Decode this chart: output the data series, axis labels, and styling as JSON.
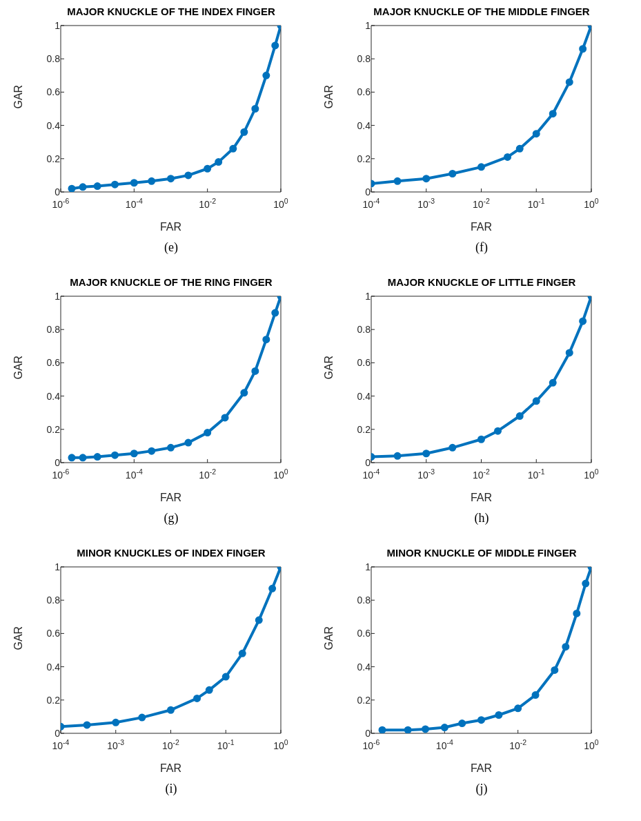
{
  "chart_data": [
    {
      "type": "line",
      "title": "MAJOR KNUCKLE OF THE INDEX FINGER",
      "xlabel": "FAR",
      "ylabel": "GAR",
      "annotations": [
        "(e)"
      ],
      "log": "x",
      "grid": false,
      "marker": "circle",
      "line_style": "solid",
      "color": "#0072bd",
      "xlim": [
        1e-06,
        1
      ],
      "xticks": [
        {
          "value": 1e-06,
          "label": "10$^{-6}$"
        },
        {
          "value": 0.0001,
          "label": "10$^{-4}$"
        },
        {
          "value": 0.01,
          "label": "10$^{-2}$"
        },
        {
          "value": 1,
          "label": "10$^{0}$"
        }
      ],
      "ylim": [
        0,
        1
      ],
      "yticks": [
        0,
        0.2,
        0.4,
        0.6,
        0.8,
        1
      ],
      "x": [
        2e-06,
        4e-06,
        1e-05,
        3e-05,
        0.0001,
        0.0003,
        0.001,
        0.003,
        0.01,
        0.02,
        0.05,
        0.1,
        0.2,
        0.4,
        0.7,
        1
      ],
      "values": [
        0.02,
        0.03,
        0.035,
        0.045,
        0.055,
        0.065,
        0.08,
        0.1,
        0.14,
        0.18,
        0.26,
        0.36,
        0.5,
        0.7,
        0.88,
        1
      ]
    },
    {
      "type": "line",
      "title": "MAJOR KNUCKLE OF THE MIDDLE FINGER",
      "xlabel": "FAR",
      "ylabel": "GAR",
      "annotations": [
        "(f)"
      ],
      "log": "x",
      "grid": false,
      "marker": "circle",
      "line_style": "solid",
      "color": "#0072bd",
      "xlim": [
        0.0001,
        1
      ],
      "xticks": [
        {
          "value": 0.0001,
          "label": "10$^{-4}$"
        },
        {
          "value": 0.001,
          "label": "10$^{-3}$"
        },
        {
          "value": 0.01,
          "label": "10$^{-2}$"
        },
        {
          "value": 0.1,
          "label": "10$^{-1}$"
        },
        {
          "value": 1,
          "label": "10$^{0}$"
        }
      ],
      "ylim": [
        0,
        1
      ],
      "yticks": [
        0,
        0.2,
        0.4,
        0.6,
        0.8,
        1
      ],
      "x": [
        0.0001,
        0.0003,
        0.001,
        0.003,
        0.01,
        0.03,
        0.05,
        0.1,
        0.2,
        0.4,
        0.7,
        1
      ],
      "values": [
        0.05,
        0.065,
        0.08,
        0.11,
        0.15,
        0.21,
        0.26,
        0.35,
        0.47,
        0.66,
        0.86,
        1
      ]
    },
    {
      "type": "line",
      "title": "MAJOR KNUCKLE OF THE RING FINGER",
      "xlabel": "FAR",
      "ylabel": "GAR",
      "annotations": [
        "(g)"
      ],
      "log": "x",
      "grid": false,
      "marker": "circle",
      "line_style": "solid",
      "color": "#0072bd",
      "xlim": [
        1e-06,
        1
      ],
      "xticks": [
        {
          "value": 1e-06,
          "label": "10$^{-6}$"
        },
        {
          "value": 0.0001,
          "label": "10$^{-4}$"
        },
        {
          "value": 0.01,
          "label": "10$^{-2}$"
        },
        {
          "value": 1,
          "label": "10$^{0}$"
        }
      ],
      "ylim": [
        0,
        1
      ],
      "yticks": [
        0,
        0.2,
        0.4,
        0.6,
        0.8,
        1
      ],
      "x": [
        2e-06,
        4e-06,
        1e-05,
        3e-05,
        0.0001,
        0.0003,
        0.001,
        0.003,
        0.01,
        0.03,
        0.1,
        0.2,
        0.4,
        0.7,
        1
      ],
      "values": [
        0.03,
        0.03,
        0.035,
        0.045,
        0.055,
        0.07,
        0.09,
        0.12,
        0.18,
        0.27,
        0.42,
        0.55,
        0.74,
        0.9,
        1
      ]
    },
    {
      "type": "line",
      "title": "MAJOR KNUCKLE OF LITTLE FINGER",
      "xlabel": "FAR",
      "ylabel": "GAR",
      "annotations": [
        "(h)"
      ],
      "log": "x",
      "grid": false,
      "marker": "circle",
      "line_style": "solid",
      "color": "#0072bd",
      "xlim": [
        0.0001,
        1
      ],
      "xticks": [
        {
          "value": 0.0001,
          "label": "10$^{-4}$"
        },
        {
          "value": 0.001,
          "label": "10$^{-3}$"
        },
        {
          "value": 0.01,
          "label": "10$^{-2}$"
        },
        {
          "value": 0.1,
          "label": "10$^{-1}$"
        },
        {
          "value": 1,
          "label": "10$^{0}$"
        }
      ],
      "ylim": [
        0,
        1
      ],
      "yticks": [
        0,
        0.2,
        0.4,
        0.6,
        0.8,
        1
      ],
      "x": [
        0.0001,
        0.0003,
        0.001,
        0.003,
        0.01,
        0.02,
        0.05,
        0.1,
        0.2,
        0.4,
        0.7,
        1
      ],
      "values": [
        0.035,
        0.04,
        0.055,
        0.09,
        0.14,
        0.19,
        0.28,
        0.37,
        0.48,
        0.66,
        0.85,
        1
      ]
    },
    {
      "type": "line",
      "title": "MINOR KNUCKLES OF INDEX FINGER",
      "xlabel": "FAR",
      "ylabel": "GAR",
      "annotations": [
        "(i)"
      ],
      "log": "x",
      "grid": false,
      "marker": "circle",
      "line_style": "solid",
      "color": "#0072bd",
      "xlim": [
        0.0001,
        1
      ],
      "xticks": [
        {
          "value": 0.0001,
          "label": "10$^{-4}$"
        },
        {
          "value": 0.001,
          "label": "10$^{-3}$"
        },
        {
          "value": 0.01,
          "label": "10$^{-2}$"
        },
        {
          "value": 0.1,
          "label": "10$^{-1}$"
        },
        {
          "value": 1,
          "label": "10$^{0}$"
        }
      ],
      "ylim": [
        0,
        1
      ],
      "yticks": [
        0,
        0.2,
        0.4,
        0.6,
        0.8,
        1
      ],
      "x": [
        0.0001,
        0.0003,
        0.001,
        0.003,
        0.01,
        0.03,
        0.05,
        0.1,
        0.2,
        0.4,
        0.7,
        1
      ],
      "values": [
        0.04,
        0.05,
        0.065,
        0.095,
        0.14,
        0.21,
        0.26,
        0.34,
        0.48,
        0.68,
        0.87,
        1
      ]
    },
    {
      "type": "line",
      "title": "MINOR KNUCKLE OF MIDDLE FINGER",
      "xlabel": "FAR",
      "ylabel": "GAR",
      "annotations": [
        "(j)"
      ],
      "log": "x",
      "grid": false,
      "marker": "circle",
      "line_style": "solid",
      "color": "#0072bd",
      "xlim": [
        1e-06,
        1
      ],
      "xticks": [
        {
          "value": 1e-06,
          "label": "10$^{-6}$"
        },
        {
          "value": 0.0001,
          "label": "10$^{-4}$"
        },
        {
          "value": 0.01,
          "label": "10$^{-2}$"
        },
        {
          "value": 1,
          "label": "10$^{0}$"
        }
      ],
      "ylim": [
        0,
        1
      ],
      "yticks": [
        0,
        0.2,
        0.4,
        0.6,
        0.8,
        1
      ],
      "x": [
        2e-06,
        1e-05,
        3e-05,
        0.0001,
        0.0003,
        0.001,
        0.003,
        0.01,
        0.03,
        0.1,
        0.2,
        0.4,
        0.7,
        1
      ],
      "values": [
        0.02,
        0.02,
        0.025,
        0.035,
        0.06,
        0.08,
        0.11,
        0.15,
        0.23,
        0.38,
        0.52,
        0.72,
        0.9,
        1
      ]
    }
  ]
}
